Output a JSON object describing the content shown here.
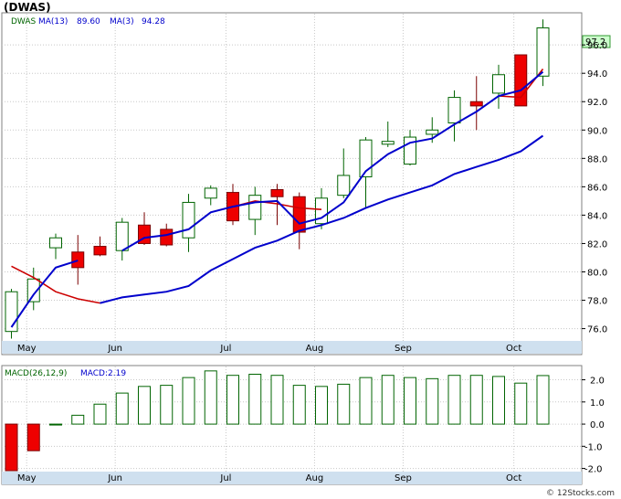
{
  "chart_data": [
    {
      "type": "candlestick",
      "title": "(DWAS)",
      "legend": [
        {
          "label": "DWAS",
          "color": "#006400"
        },
        {
          "label": "MA(13)",
          "value": "89.60",
          "color": "#0000cc"
        },
        {
          "label": "MA(3)",
          "value": "94.28",
          "color": "#0000cc"
        }
      ],
      "last_price": "97.2",
      "y_ticks": [
        "76.0",
        "78.0",
        "80.0",
        "82.0",
        "84.0",
        "86.0",
        "88.0",
        "90.0",
        "92.0",
        "94.0",
        "96.0"
      ],
      "ylim": [
        75.2,
        98.2
      ],
      "x_labels": [
        "May",
        "Jun",
        "Jul",
        "Aug",
        "Sep",
        "Oct"
      ],
      "x_label_index": [
        1.1,
        5.1,
        10.1,
        14.1,
        18.1,
        23.1
      ],
      "candles": [
        {
          "o": 75.8,
          "h": 78.8,
          "l": 75.3,
          "c": 78.6
        },
        {
          "o": 77.9,
          "h": 80.3,
          "l": 77.3,
          "c": 79.5
        },
        {
          "o": 81.7,
          "h": 82.7,
          "l": 80.9,
          "c": 82.4
        },
        {
          "o": 81.4,
          "h": 82.6,
          "l": 79.1,
          "c": 80.3
        },
        {
          "o": 81.8,
          "h": 82.5,
          "l": 81.1,
          "c": 81.2
        },
        {
          "o": 81.5,
          "h": 83.8,
          "l": 80.8,
          "c": 83.5
        },
        {
          "o": 83.3,
          "h": 84.2,
          "l": 81.9,
          "c": 82.0
        },
        {
          "o": 83.0,
          "h": 83.4,
          "l": 81.8,
          "c": 81.9
        },
        {
          "o": 82.4,
          "h": 85.5,
          "l": 81.4,
          "c": 84.9
        },
        {
          "o": 85.2,
          "h": 86.1,
          "l": 84.7,
          "c": 85.9
        },
        {
          "o": 85.6,
          "h": 86.2,
          "l": 83.3,
          "c": 83.6
        },
        {
          "o": 83.7,
          "h": 86.0,
          "l": 82.6,
          "c": 85.4
        },
        {
          "o": 85.8,
          "h": 86.2,
          "l": 83.3,
          "c": 85.3
        },
        {
          "o": 85.3,
          "h": 85.6,
          "l": 81.6,
          "c": 82.8
        },
        {
          "o": 83.4,
          "h": 85.9,
          "l": 83.0,
          "c": 85.2
        },
        {
          "o": 85.4,
          "h": 88.7,
          "l": 85.2,
          "c": 86.8
        },
        {
          "o": 86.7,
          "h": 89.5,
          "l": 84.5,
          "c": 89.3
        },
        {
          "o": 89.0,
          "h": 90.6,
          "l": 88.8,
          "c": 89.2
        },
        {
          "o": 87.6,
          "h": 90.0,
          "l": 87.5,
          "c": 89.5
        },
        {
          "o": 89.7,
          "h": 90.9,
          "l": 89.1,
          "c": 90.0
        },
        {
          "o": 90.5,
          "h": 92.8,
          "l": 89.2,
          "c": 92.3
        },
        {
          "o": 92.0,
          "h": 93.8,
          "l": 90.0,
          "c": 91.7
        },
        {
          "o": 92.6,
          "h": 94.6,
          "l": 91.5,
          "c": 93.9
        },
        {
          "o": 95.3,
          "h": 95.3,
          "l": 91.7,
          "c": 91.7
        },
        {
          "o": 93.8,
          "h": 97.8,
          "l": 93.1,
          "c": 97.2
        }
      ],
      "ma3": [
        80.4,
        79.6,
        78.6,
        78.1,
        77.8,
        null,
        null,
        null,
        null,
        null,
        84.6,
        85.0,
        84.8,
        84.5,
        84.4,
        null,
        null,
        null,
        null,
        null,
        null,
        null,
        92.4,
        92.3,
        94.3
      ],
      "ma13": [
        76.1,
        78.4,
        80.3,
        80.8,
        null,
        81.5,
        82.4,
        82.6,
        83.0,
        84.2,
        84.6,
        84.9,
        85.0,
        83.4,
        83.8,
        84.9,
        87.1,
        88.3,
        89.1,
        89.4,
        90.4,
        91.3,
        92.4,
        92.8,
        94.1
      ],
      "ma13_long": [
        null,
        null,
        null,
        null,
        77.8,
        78.2,
        78.4,
        78.6,
        79.0,
        80.1,
        80.9,
        81.7,
        82.2,
        82.9,
        83.3,
        83.8,
        84.5,
        85.1,
        85.6,
        86.1,
        86.9,
        87.4,
        87.9,
        88.5,
        89.6
      ]
    },
    {
      "type": "bar",
      "title": "MACD(26,12,9)",
      "legend": [
        {
          "label": "MACD(26,12,9)",
          "color": "#006400"
        },
        {
          "label": "MACD:2.19",
          "color": "#0000cc"
        }
      ],
      "y_ticks": [
        "2.0",
        "1.0",
        "0.0",
        "-1.0",
        "-2.0"
      ],
      "ylim": [
        -2.1,
        2.6
      ],
      "values": [
        -2.1,
        -1.2,
        0.0,
        0.4,
        0.9,
        1.4,
        1.7,
        1.75,
        2.1,
        2.4,
        2.2,
        2.25,
        2.2,
        1.75,
        1.7,
        1.8,
        2.1,
        2.2,
        2.1,
        2.05,
        2.2,
        2.2,
        2.15,
        1.85,
        2.19
      ],
      "x_labels": [
        "May",
        "Jun",
        "Jul",
        "Aug",
        "Sep",
        "Oct"
      ],
      "x_label_index": [
        1.1,
        5.1,
        10.1,
        14.1,
        18.1,
        23.1
      ]
    }
  ],
  "footer": "© 12Stocks.com"
}
